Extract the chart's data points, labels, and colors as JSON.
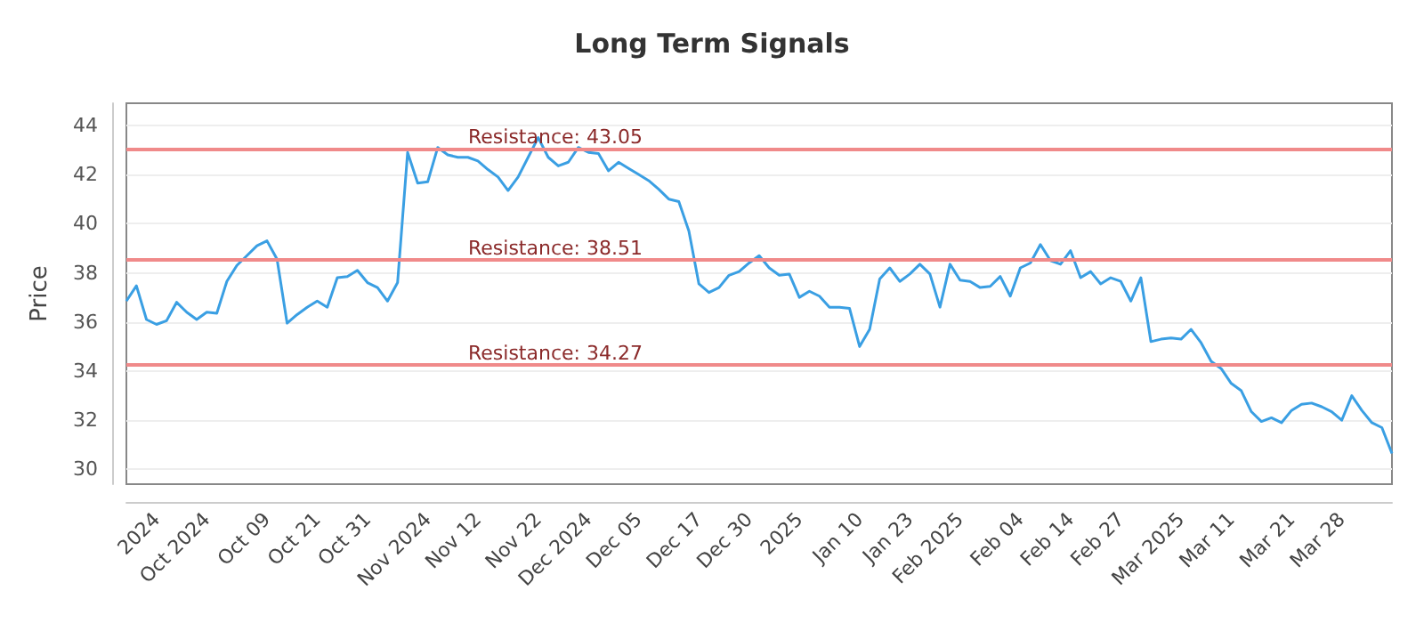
{
  "chart_data": {
    "type": "line",
    "title": "Long Term Signals",
    "ylabel": "Price",
    "categories": [
      null,
      null,
      null,
      "2024",
      null,
      null,
      null,
      null,
      "Oct 2024",
      null,
      null,
      null,
      null,
      null,
      "Oct 09",
      null,
      null,
      null,
      null,
      "Oct 21",
      null,
      null,
      null,
      null,
      "Oct 31",
      null,
      null,
      null,
      null,
      null,
      "Nov 2024",
      null,
      null,
      null,
      null,
      "Nov 12",
      null,
      null,
      null,
      null,
      null,
      "Nov 22",
      null,
      null,
      null,
      null,
      "Dec 2024",
      null,
      null,
      null,
      null,
      "Dec 05",
      null,
      null,
      null,
      null,
      null,
      "Dec 17",
      null,
      null,
      null,
      null,
      "Dec 30",
      null,
      null,
      null,
      null,
      "2025",
      null,
      null,
      null,
      null,
      null,
      "Jan 10",
      null,
      null,
      null,
      null,
      "Jan 23",
      null,
      null,
      null,
      null,
      "Feb 2025",
      null,
      null,
      null,
      null,
      null,
      "Feb 04",
      null,
      null,
      null,
      null,
      "Feb 14",
      null,
      null,
      null,
      null,
      "Feb 27",
      null,
      null,
      null,
      null,
      null,
      "Mar 2025",
      null,
      null,
      null,
      null,
      "Mar 11",
      null,
      null,
      null,
      null,
      null,
      "Mar 21",
      null,
      null,
      null,
      null,
      "Mar 28",
      null,
      null,
      null,
      null,
      null
    ],
    "series": [
      {
        "color": "#3a9fe3",
        "values": [
          36.85,
          37.47,
          36.1,
          35.9,
          36.05,
          36.8,
          36.4,
          36.1,
          36.4,
          36.35,
          37.65,
          38.3,
          38.7,
          39.1,
          39.3,
          38.55,
          35.95,
          36.3,
          36.6,
          36.85,
          36.6,
          37.8,
          37.85,
          38.1,
          37.6,
          37.4,
          36.85,
          37.6,
          42.9,
          41.65,
          41.7,
          43.1,
          42.8,
          42.7,
          42.7,
          42.55,
          42.2,
          41.9,
          41.35,
          41.9,
          42.7,
          43.5,
          42.7,
          42.35,
          42.5,
          43.1,
          42.9,
          42.85,
          42.15,
          42.5,
          42.25,
          42.0,
          41.75,
          41.4,
          41.0,
          40.9,
          39.7,
          37.55,
          37.2,
          37.4,
          37.9,
          38.05,
          38.4,
          38.7,
          38.2,
          37.9,
          37.95,
          37.0,
          37.25,
          37.05,
          36.6,
          36.6,
          36.55,
          35.0,
          35.7,
          37.75,
          38.2,
          37.65,
          37.95,
          38.35,
          37.95,
          36.6,
          38.35,
          37.7,
          37.65,
          37.4,
          37.45,
          37.85,
          37.05,
          38.2,
          38.4,
          39.15,
          38.5,
          38.35,
          38.9,
          37.8,
          38.05,
          37.55,
          37.8,
          37.65,
          36.85,
          37.8,
          35.2,
          35.3,
          35.35,
          35.3,
          35.7,
          35.15,
          34.4,
          34.1,
          33.5,
          33.2,
          32.35,
          31.95,
          32.1,
          31.9,
          32.4,
          32.65,
          32.7,
          32.55,
          32.35,
          32.0,
          33.0,
          32.4,
          31.9,
          31.7,
          30.65
        ]
      }
    ],
    "ylim": [
      29.4,
      44.9
    ],
    "yticks": [
      30,
      32,
      34,
      36,
      38,
      40,
      42,
      44
    ],
    "ref_lines": [
      {
        "axis": "y",
        "value": 43.05,
        "label": "Resistance: 43.05",
        "color": "#f08a8a"
      },
      {
        "axis": "y",
        "value": 38.51,
        "label": "Resistance: 38.51",
        "color": "#f08a8a"
      },
      {
        "axis": "y",
        "value": 34.27,
        "label": "Resistance: 34.27",
        "color": "#f08a8a"
      }
    ],
    "grid": "y",
    "marker": "none",
    "line_style": "solid"
  }
}
